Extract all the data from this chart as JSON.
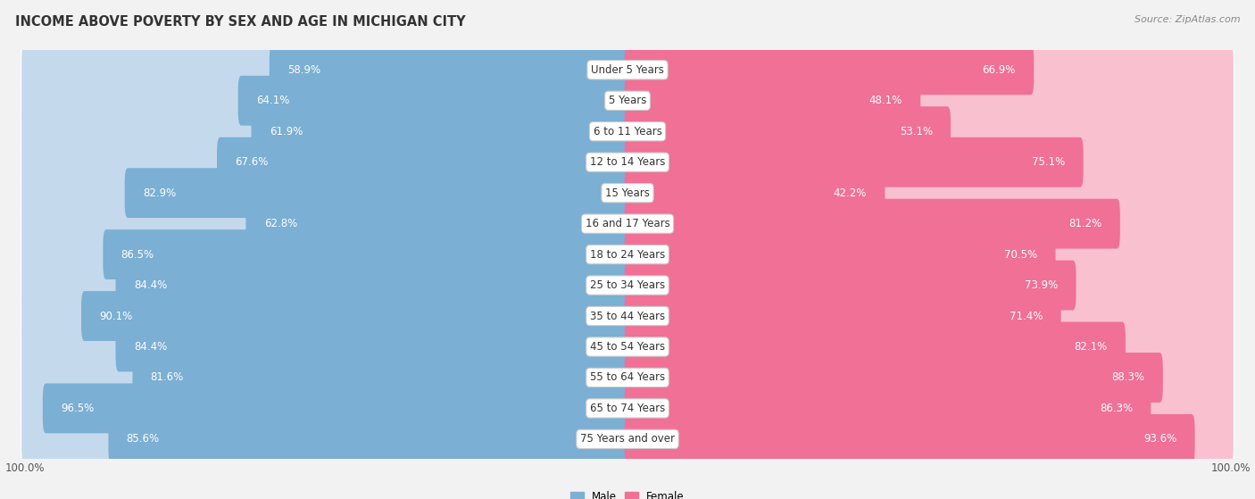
{
  "title": "INCOME ABOVE POVERTY BY SEX AND AGE IN MICHIGAN CITY",
  "source": "Source: ZipAtlas.com",
  "categories": [
    "Under 5 Years",
    "5 Years",
    "6 to 11 Years",
    "12 to 14 Years",
    "15 Years",
    "16 and 17 Years",
    "18 to 24 Years",
    "25 to 34 Years",
    "35 to 44 Years",
    "45 to 54 Years",
    "55 to 64 Years",
    "65 to 74 Years",
    "75 Years and over"
  ],
  "male_values": [
    58.9,
    64.1,
    61.9,
    67.6,
    82.9,
    62.8,
    86.5,
    84.4,
    90.1,
    84.4,
    81.6,
    96.5,
    85.6
  ],
  "female_values": [
    66.9,
    48.1,
    53.1,
    75.1,
    42.2,
    81.2,
    70.5,
    73.9,
    71.4,
    82.1,
    88.3,
    86.3,
    93.6
  ],
  "male_color": "#7bafd4",
  "male_track_color": "#c5d9ed",
  "female_color": "#f07096",
  "female_track_color": "#f9c0cf",
  "male_label": "Male",
  "female_label": "Female",
  "axis_max": 100.0,
  "bg_color": "#f2f2f2",
  "row_color_odd": "#e8e8e8",
  "row_color_even": "#f8f8f8",
  "title_fontsize": 10.5,
  "label_fontsize": 8.5,
  "value_fontsize": 8.5,
  "source_fontsize": 8,
  "cat_label_fontsize": 8.5
}
